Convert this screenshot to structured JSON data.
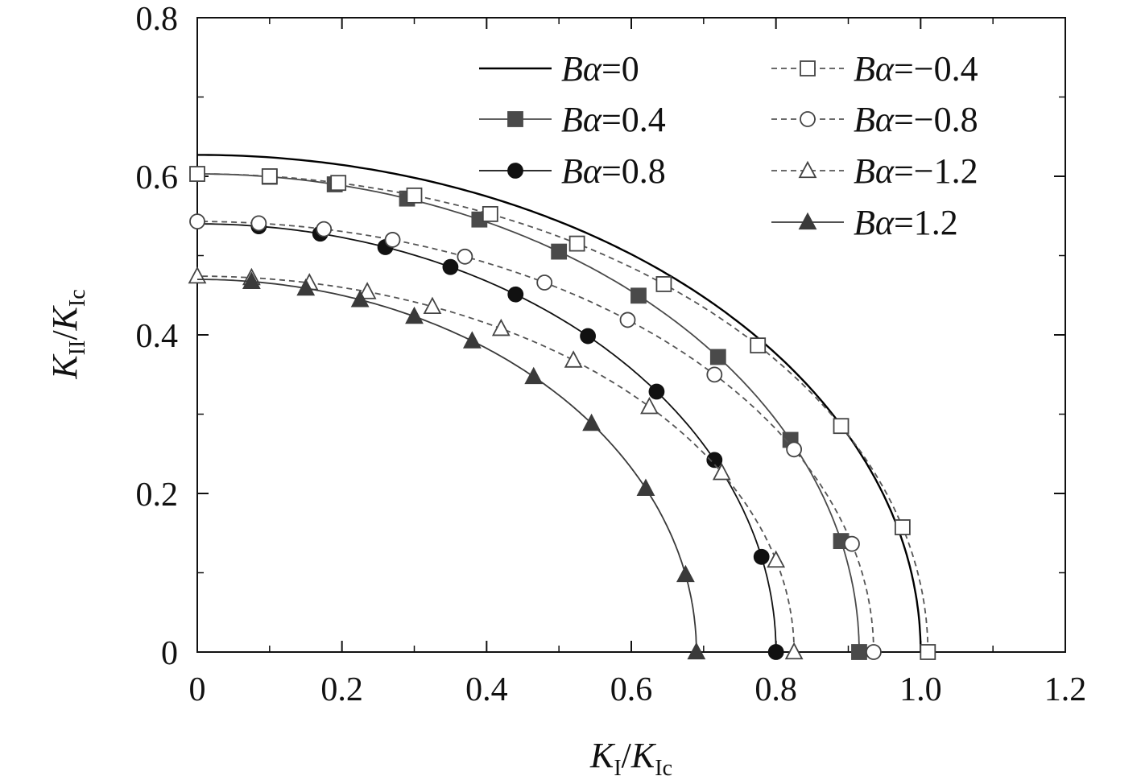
{
  "chart_data": {
    "type": "line",
    "title": "",
    "xlabel": {
      "main": "K",
      "main_sub": "I",
      "sep": "/",
      "den": "K",
      "den_sub": "Ic"
    },
    "ylabel": {
      "main": "K",
      "main_sub": "II",
      "sep": "/",
      "den": "K",
      "den_sub": "Ic"
    },
    "xlim": [
      0,
      1.2
    ],
    "ylim": [
      0,
      0.8
    ],
    "xticks": [
      "0",
      "0.2",
      "0.4",
      "0.6",
      "0.8",
      "1.0",
      "1.2"
    ],
    "yticks": [
      "0",
      "0.2",
      "0.4",
      "0.6",
      "0.8"
    ],
    "grid": false,
    "legend_placement": "top-right, two columns",
    "series": [
      {
        "name": "Bα=0",
        "label_prefix": "Bα",
        "label_value": "=0",
        "style": "solid",
        "marker": "none",
        "color": "#000000",
        "a": 1.0,
        "b": 0.627,
        "markers_x": []
      },
      {
        "name": "Bα=0.4",
        "label_prefix": "Bα",
        "label_value": "=0.4",
        "style": "solid",
        "marker": "square-filled",
        "color": "#4a4a4a",
        "a": 0.915,
        "b": 0.603,
        "markers_x": [
          0.1,
          0.19,
          0.29,
          0.39,
          0.5,
          0.61,
          0.72,
          0.82,
          0.89,
          0.915
        ]
      },
      {
        "name": "Bα=0.8",
        "label_prefix": "Bα",
        "label_value": "=0.8",
        "style": "solid",
        "marker": "circle-filled",
        "color": "#111111",
        "a": 0.8,
        "b": 0.54,
        "markers_x": [
          0.085,
          0.17,
          0.26,
          0.35,
          0.44,
          0.54,
          0.635,
          0.715,
          0.78,
          0.8
        ]
      },
      {
        "name": "Bα=-0.4",
        "label_prefix": "Bα",
        "label_value": "=−0.4",
        "style": "dashed",
        "marker": "square-open",
        "color": "#555555",
        "a": 1.01,
        "b": 0.603,
        "markers_x": [
          0.0,
          0.1,
          0.195,
          0.3,
          0.405,
          0.525,
          0.645,
          0.775,
          0.89,
          0.975,
          1.01
        ]
      },
      {
        "name": "Bα=-0.8",
        "label_prefix": "Bα",
        "label_value": "=−0.8",
        "style": "dashed",
        "marker": "circle-open",
        "color": "#555555",
        "a": 0.935,
        "b": 0.543,
        "markers_x": [
          0.0,
          0.085,
          0.175,
          0.27,
          0.37,
          0.48,
          0.595,
          0.715,
          0.825,
          0.905,
          0.935
        ]
      },
      {
        "name": "Bα=-1.2",
        "label_prefix": "Bα",
        "label_value": "=−1.2",
        "style": "dashed",
        "marker": "triangle-open",
        "color": "#555555",
        "a": 0.825,
        "b": 0.474,
        "markers_x": [
          0.0,
          0.075,
          0.155,
          0.235,
          0.325,
          0.42,
          0.52,
          0.625,
          0.725,
          0.8,
          0.825
        ]
      },
      {
        "name": "Bα=1.2",
        "label_prefix": "Bα",
        "label_value": "=1.2",
        "style": "solid",
        "marker": "triangle-filled",
        "color": "#3a3a3a",
        "a": 0.69,
        "b": 0.47,
        "markers_x": [
          0.075,
          0.15,
          0.225,
          0.3,
          0.38,
          0.465,
          0.545,
          0.62,
          0.675,
          0.69
        ]
      }
    ]
  }
}
